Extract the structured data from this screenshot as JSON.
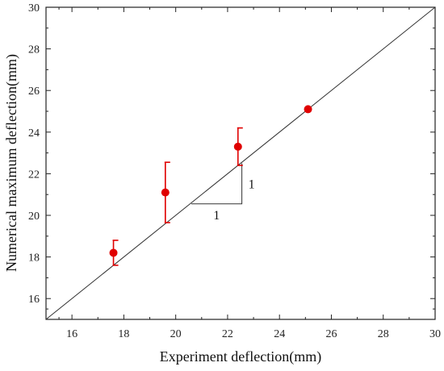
{
  "chart_data": {
    "type": "scatter",
    "xlabel": "Experiment deflection(mm)",
    "ylabel": "Numerical maximum deflection(mm)",
    "xlim": [
      15,
      30
    ],
    "ylim": [
      15,
      30
    ],
    "x_ticks": [
      16,
      18,
      20,
      22,
      24,
      26,
      28,
      30
    ],
    "y_ticks": [
      16,
      18,
      20,
      22,
      24,
      26,
      28,
      30
    ],
    "grid": false,
    "legend": "none",
    "point_color": "#e00000",
    "reference_line": {
      "from": [
        15,
        15
      ],
      "to": [
        30,
        30
      ],
      "color": "#333333"
    },
    "points": [
      {
        "x": 17.6,
        "y": 18.2,
        "err_low": 0.6,
        "err_high": 0.6
      },
      {
        "x": 19.6,
        "y": 21.1,
        "err_low": 1.45,
        "err_high": 1.45
      },
      {
        "x": 22.4,
        "y": 23.3,
        "err_low": 0.9,
        "err_high": 0.9
      },
      {
        "x": 25.1,
        "y": 25.1,
        "err_low": 0,
        "err_high": 0
      }
    ],
    "slope_triangle": {
      "corner_from": [
        20.6,
        20.55
      ],
      "corner": [
        22.55,
        20.55
      ],
      "corner_to": [
        22.55,
        22.5
      ],
      "horizontal_label": "1",
      "vertical_label": "1"
    }
  }
}
